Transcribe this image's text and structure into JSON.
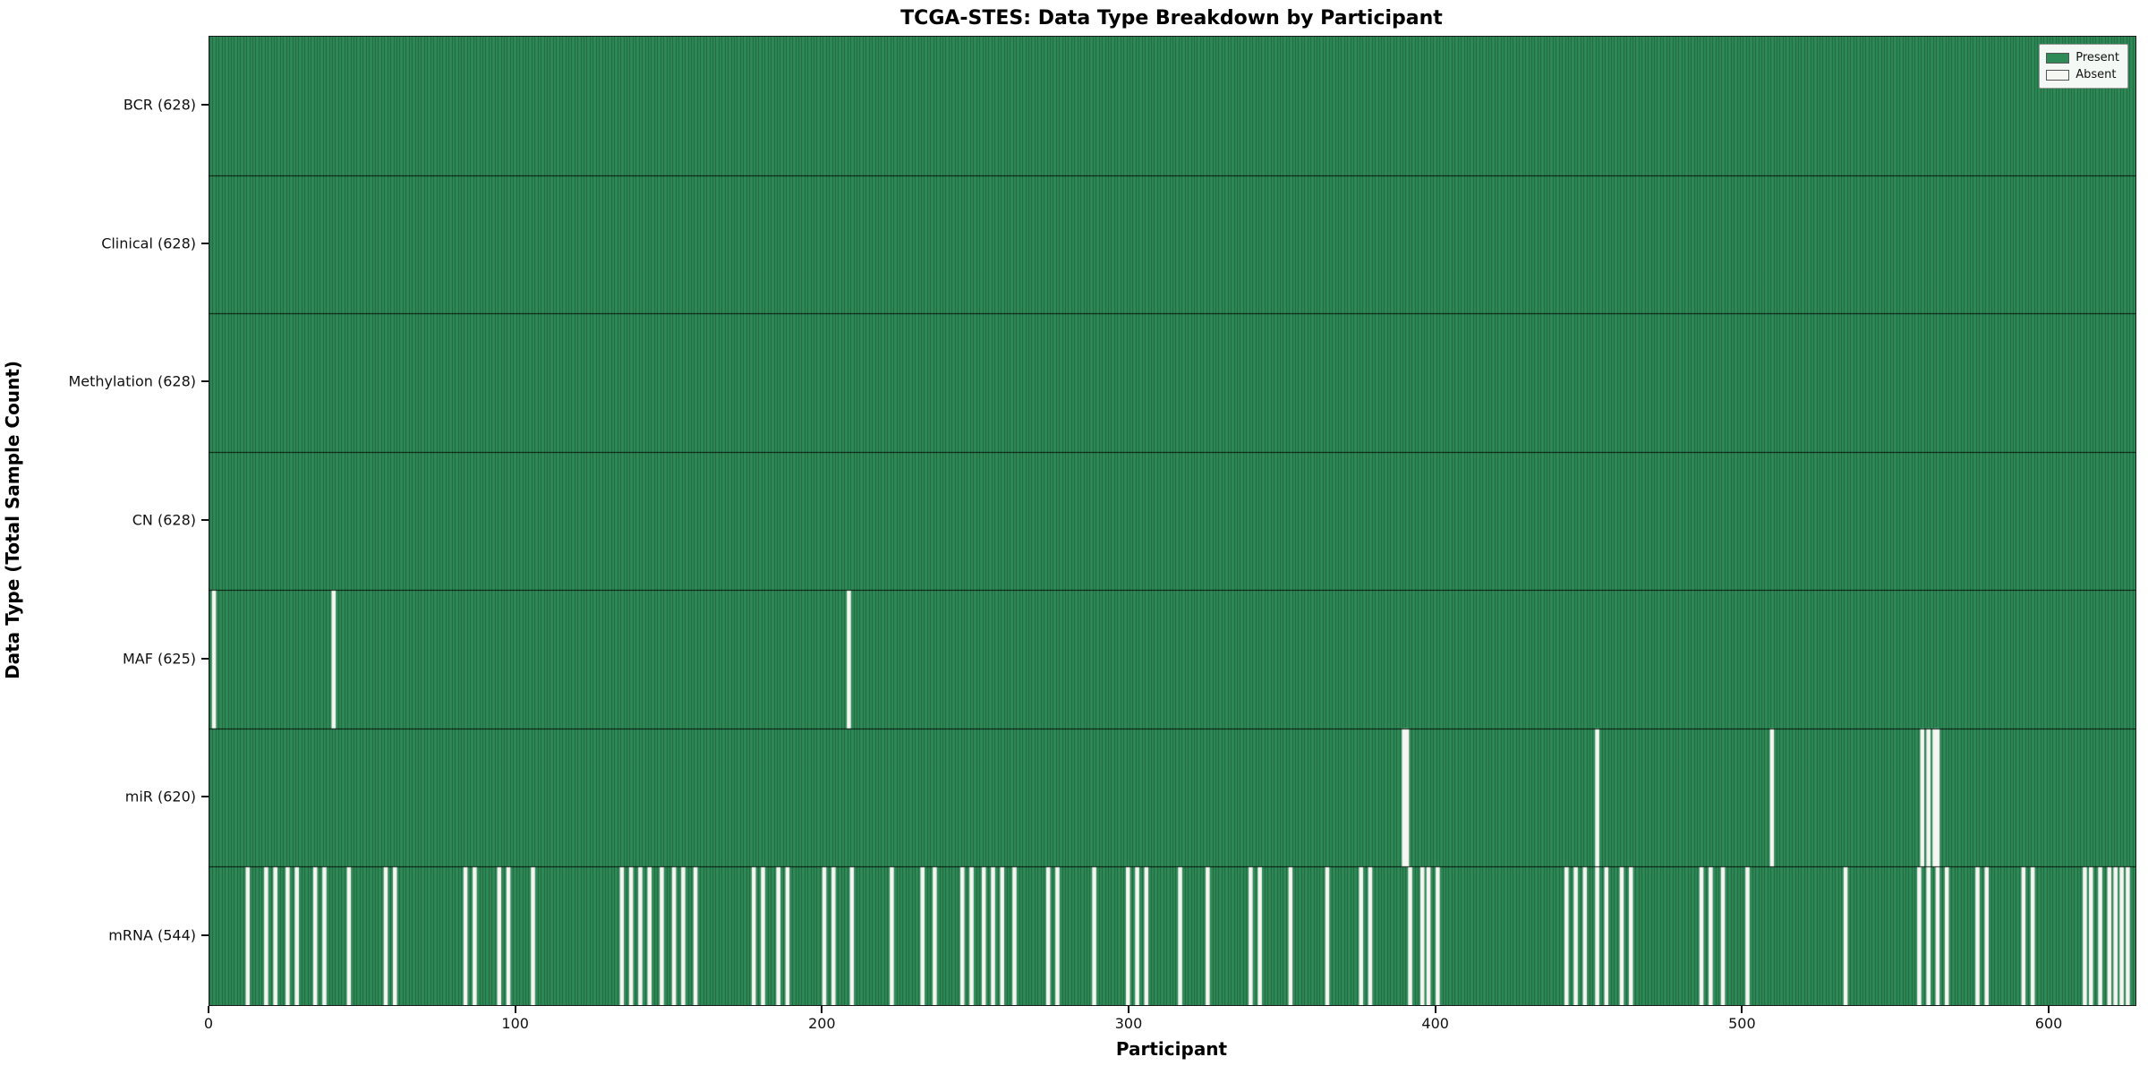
{
  "chart": {
    "title": "TCGA-STES: Data Type Breakdown by Participant",
    "xlabel": "Participant",
    "ylabel": "Data Type (Total Sample Count)"
  },
  "chart_data": {
    "type": "heatmap",
    "title": "TCGA-STES: Data Type Breakdown by Participant",
    "xlabel": "Participant",
    "ylabel": "Data Type (Total Sample Count)",
    "n_participants": 628,
    "x_ticks": [
      0,
      100,
      200,
      300,
      400,
      500,
      600
    ],
    "legend_position": "upper right",
    "colors": {
      "present": "#2e8b57",
      "absent": "#f6f6f3",
      "cell_edge": "rgba(0,0,0,0.35)",
      "row_separator": "rgba(0,0,0,0.85)"
    },
    "legend": [
      {
        "label": "Present",
        "color": "#2e8b57"
      },
      {
        "label": "Absent",
        "color": "#f6f6f3"
      }
    ],
    "rows": [
      {
        "label": "BCR (628)",
        "data_type": "BCR",
        "present_count": 628,
        "absent_participants": []
      },
      {
        "label": "Clinical (628)",
        "data_type": "Clinical",
        "present_count": 628,
        "absent_participants": []
      },
      {
        "label": "Methylation (628)",
        "data_type": "Methylation",
        "present_count": 628,
        "absent_participants": []
      },
      {
        "label": "CN (628)",
        "data_type": "CN",
        "present_count": 628,
        "absent_participants": []
      },
      {
        "label": "MAF (625)",
        "data_type": "MAF",
        "present_count": 625,
        "absent_participants": [
          1,
          40,
          208
        ]
      },
      {
        "label": "miR (620)",
        "data_type": "miR",
        "present_count": 620,
        "absent_participants": [
          389,
          390,
          452,
          509,
          558,
          560,
          562,
          563
        ]
      },
      {
        "label": "mRNA (544)",
        "data_type": "mRNA",
        "present_count": 544,
        "absent_participants": [
          12,
          18,
          21,
          25,
          28,
          34,
          37,
          45,
          57,
          60,
          83,
          86,
          94,
          97,
          105,
          134,
          137,
          140,
          143,
          147,
          151,
          154,
          158,
          177,
          180,
          185,
          188,
          200,
          203,
          209,
          222,
          232,
          236,
          245,
          248,
          252,
          255,
          258,
          262,
          273,
          276,
          288,
          299,
          302,
          305,
          316,
          325,
          339,
          342,
          352,
          364,
          375,
          378,
          391,
          395,
          397,
          400,
          442,
          445,
          448,
          452,
          455,
          460,
          463,
          486,
          489,
          493,
          501,
          533,
          557,
          560,
          563,
          566,
          576,
          579,
          591,
          594,
          611,
          613,
          616,
          619,
          621,
          623,
          625
        ]
      }
    ]
  }
}
